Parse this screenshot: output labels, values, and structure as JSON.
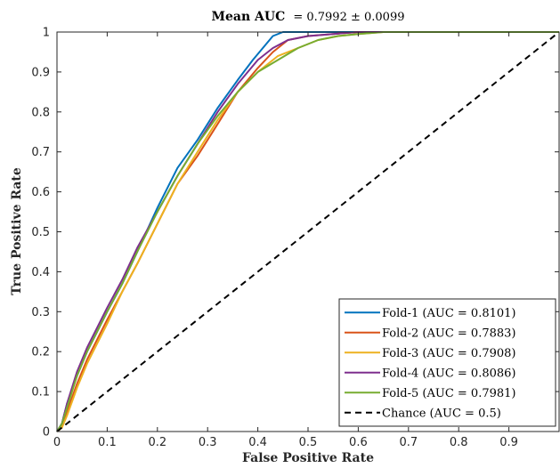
{
  "chart_data": {
    "type": "line",
    "title": "Mean AUC",
    "title_value": "= 0.7992 ± 0.0099",
    "xlabel": "False Positive Rate",
    "ylabel": "True Positive Rate",
    "xlim": [
      0,
      1
    ],
    "ylim": [
      0,
      1
    ],
    "xticks": [
      0,
      0.1,
      0.2,
      0.3,
      0.4,
      0.5,
      0.6,
      0.7,
      0.8,
      0.9
    ],
    "xtick_labels": [
      "0",
      "0.1",
      "0.2",
      "0.3",
      "0.4",
      "0.5",
      "0.6",
      "0.7",
      "0.8",
      "0.9"
    ],
    "yticks": [
      0,
      0.1,
      0.2,
      0.3,
      0.4,
      0.5,
      0.6,
      0.7,
      0.8,
      0.9,
      1
    ],
    "ytick_labels": [
      "0",
      "0.1",
      "0.2",
      "0.3",
      "0.4",
      "0.5",
      "0.6",
      "0.7",
      "0.8",
      "0.9",
      "1"
    ],
    "grid": false,
    "legend_position": "bottom-right",
    "series": [
      {
        "name": "Fold-1 (AUC = 0.8101)",
        "color": "#0072BD",
        "dash": "solid",
        "x": [
          0,
          0.01,
          0.02,
          0.04,
          0.06,
          0.08,
          0.1,
          0.13,
          0.16,
          0.2,
          0.24,
          0.28,
          0.32,
          0.36,
          0.39,
          0.41,
          0.43,
          0.45,
          0.47,
          0.5,
          0.55,
          0.6,
          0.7,
          0.8,
          0.9,
          1.0
        ],
        "y": [
          0,
          0.02,
          0.07,
          0.14,
          0.2,
          0.25,
          0.3,
          0.37,
          0.45,
          0.56,
          0.66,
          0.73,
          0.81,
          0.88,
          0.93,
          0.96,
          0.99,
          1.0,
          1.0,
          1.0,
          1.0,
          1.0,
          1.0,
          1.0,
          1.0,
          1.0
        ]
      },
      {
        "name": "Fold-2 (AUC = 0.7883)",
        "color": "#D95319",
        "dash": "solid",
        "x": [
          0,
          0.01,
          0.02,
          0.04,
          0.06,
          0.08,
          0.1,
          0.13,
          0.16,
          0.2,
          0.24,
          0.28,
          0.32,
          0.36,
          0.4,
          0.43,
          0.46,
          0.5,
          0.55,
          0.6,
          0.66,
          0.7,
          0.8,
          0.9,
          1.0
        ],
        "y": [
          0,
          0.01,
          0.05,
          0.12,
          0.18,
          0.23,
          0.28,
          0.35,
          0.42,
          0.52,
          0.62,
          0.69,
          0.77,
          0.85,
          0.91,
          0.95,
          0.98,
          0.99,
          0.995,
          1.0,
          1.0,
          1.0,
          1.0,
          1.0,
          1.0
        ]
      },
      {
        "name": "Fold-3 (AUC = 0.7908)",
        "color": "#EDB120",
        "dash": "solid",
        "x": [
          0,
          0.01,
          0.02,
          0.04,
          0.06,
          0.08,
          0.1,
          0.13,
          0.16,
          0.2,
          0.24,
          0.28,
          0.32,
          0.36,
          0.4,
          0.44,
          0.48,
          0.52,
          0.56,
          0.6,
          0.65,
          0.7,
          0.8,
          0.9,
          1.0
        ],
        "y": [
          0,
          0.01,
          0.04,
          0.11,
          0.17,
          0.22,
          0.27,
          0.35,
          0.42,
          0.52,
          0.62,
          0.7,
          0.78,
          0.85,
          0.9,
          0.94,
          0.96,
          0.98,
          0.99,
          0.995,
          1.0,
          1.0,
          1.0,
          1.0,
          1.0
        ]
      },
      {
        "name": "Fold-4 (AUC = 0.8086)",
        "color": "#7E2F8E",
        "dash": "solid",
        "x": [
          0,
          0.01,
          0.02,
          0.04,
          0.06,
          0.08,
          0.1,
          0.13,
          0.16,
          0.2,
          0.24,
          0.28,
          0.32,
          0.36,
          0.4,
          0.43,
          0.46,
          0.5,
          0.55,
          0.6,
          0.66,
          0.7,
          0.8,
          0.9,
          1.0
        ],
        "y": [
          0,
          0.02,
          0.07,
          0.15,
          0.21,
          0.26,
          0.31,
          0.38,
          0.46,
          0.55,
          0.64,
          0.72,
          0.8,
          0.87,
          0.93,
          0.96,
          0.98,
          0.99,
          0.995,
          1.0,
          1.0,
          1.0,
          1.0,
          1.0,
          1.0
        ]
      },
      {
        "name": "Fold-5 (AUC = 0.7981)",
        "color": "#77AC30",
        "dash": "solid",
        "x": [
          0,
          0.01,
          0.02,
          0.04,
          0.06,
          0.08,
          0.1,
          0.13,
          0.16,
          0.2,
          0.24,
          0.28,
          0.32,
          0.36,
          0.4,
          0.44,
          0.48,
          0.52,
          0.56,
          0.6,
          0.65,
          0.7,
          0.8,
          0.9,
          1.0
        ],
        "y": [
          0,
          0.02,
          0.06,
          0.14,
          0.2,
          0.25,
          0.3,
          0.37,
          0.45,
          0.55,
          0.64,
          0.72,
          0.79,
          0.85,
          0.9,
          0.93,
          0.96,
          0.98,
          0.99,
          0.995,
          1.0,
          1.0,
          1.0,
          1.0,
          1.0
        ]
      },
      {
        "name": "Chance (AUC = 0.5)",
        "color": "#000000",
        "dash": "dashed",
        "x": [
          0,
          1
        ],
        "y": [
          0,
          1
        ]
      }
    ]
  }
}
